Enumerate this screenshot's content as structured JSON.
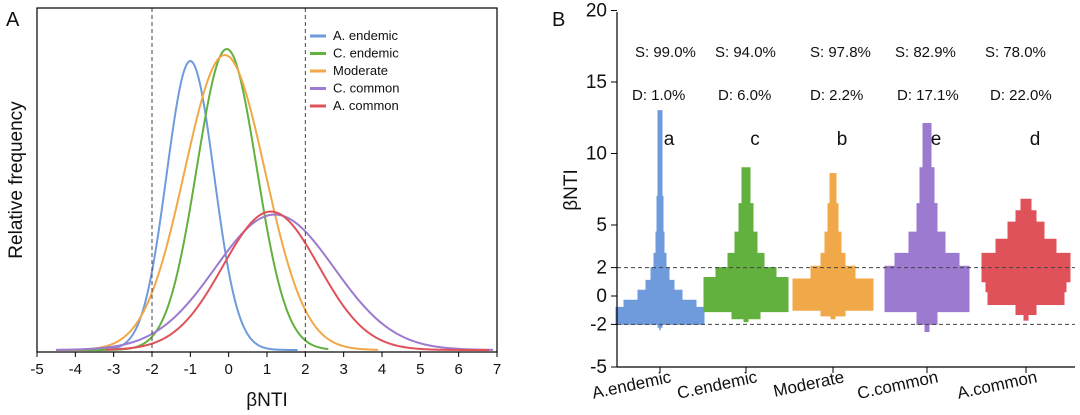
{
  "chart_data": [
    {
      "type": "line",
      "panel_label": "A",
      "xlabel": "βNTI",
      "ylabel": "Relative frequency",
      "xlim": [
        -5,
        7
      ],
      "xticks": [
        "-5",
        "-4",
        "-3",
        "-2",
        "-1",
        "0",
        "1",
        "2",
        "3",
        "4",
        "5",
        "6",
        "7"
      ],
      "reference_lines_x": [
        -2,
        2
      ],
      "legend": "top-right",
      "series": [
        {
          "name": "A. endemic",
          "color": "#6f9bdc",
          "mean": -1.0,
          "sd": 0.62,
          "peak": 0.96,
          "range": [
            -4.5,
            1.8
          ]
        },
        {
          "name": "C. endemic",
          "color": "#62b13e",
          "mean": -0.05,
          "sd": 0.78,
          "peak": 1.0,
          "range": [
            -4.5,
            2.6
          ]
        },
        {
          "name": "Moderate",
          "color": "#f0a848",
          "mean": -0.1,
          "sd": 1.05,
          "peak": 0.98,
          "range": [
            -4.5,
            3.9
          ]
        },
        {
          "name": "C. common",
          "color": "#9b7ad0",
          "mean": 1.2,
          "sd": 1.55,
          "peak": 0.45,
          "range": [
            -4.5,
            6.9
          ]
        },
        {
          "name": "A. common",
          "color": "#e0525a",
          "mean": 1.1,
          "sd": 1.25,
          "peak": 0.46,
          "range": [
            -3.2,
            6.8
          ]
        }
      ]
    },
    {
      "type": "violin",
      "panel_label": "B",
      "ylabel": "βNTI",
      "ylim": [
        -5,
        20
      ],
      "yticks": [
        "-5",
        "-2",
        "0",
        "2",
        "5",
        "10",
        "15",
        "20"
      ],
      "reference_lines_y": [
        -2,
        2
      ],
      "categories": [
        "A.endemic",
        "C.endemic",
        "Moderate",
        "C.common",
        "A.common"
      ],
      "series": [
        {
          "name": "A.endemic",
          "color": "#6f9bdc",
          "S": "S: 99.0%",
          "D": "D: 1.0%",
          "letter": "a",
          "min": -2.4,
          "max": 13.0
        },
        {
          "name": "C.endemic",
          "color": "#62b13e",
          "S": "S: 94.0%",
          "D": "D: 6.0%",
          "letter": "c",
          "min": -1.8,
          "max": 9.0
        },
        {
          "name": "Moderate",
          "color": "#f0a848",
          "S": "S: 97.8%",
          "D": "D: 2.2%",
          "letter": "b",
          "min": -1.6,
          "max": 8.6
        },
        {
          "name": "C.common",
          "color": "#9b7ad0",
          "S": "S: 82.9%",
          "D": "D: 17.1%",
          "letter": "e",
          "min": -2.5,
          "max": 12.1
        },
        {
          "name": "A.common",
          "color": "#e0525a",
          "S": "S: 78.0%",
          "D": "D: 22.0%",
          "letter": "d",
          "min": -1.7,
          "max": 6.8
        }
      ]
    }
  ]
}
